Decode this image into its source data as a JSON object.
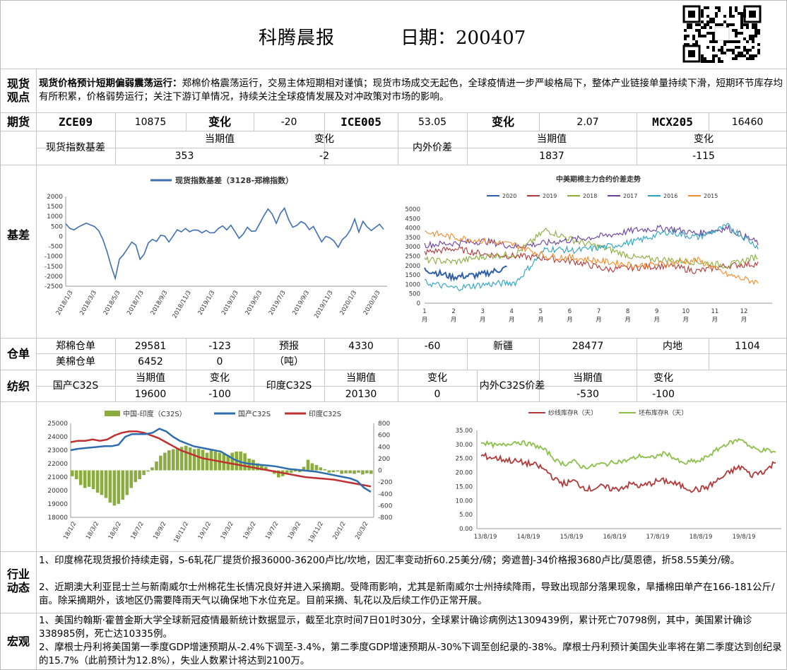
{
  "header": {
    "title": "科腾晨报",
    "date": "日期：200407"
  },
  "spot": {
    "label": "现货\n观点",
    "headline": "现货价格预计短期偏弱震荡运行：",
    "text": "郑棉价格震荡运行，交易主体短期相对谨慎；现货市场成交无起色，全球疫情进一步严峻格局下，整体产业链接单量持续下滑，短期环节库存均有所积累，价格弱势运行；关注下游订单情况，持续关注全球疫情发展及对冲政策对市场的影响。"
  },
  "futures": {
    "label": "期货",
    "zce_code": "ZCE09",
    "zce_price": "10875",
    "change_label": "变化",
    "zce_change": "-20",
    "ice_code": "ICE005",
    "ice_price": "53.05",
    "ice_change": "2.07",
    "mcx_code": "MCX205",
    "mcx_price": "16460"
  },
  "basis": {
    "label": "基差",
    "spot_index_label": "现货指数基差",
    "current_label": "当期值",
    "change_label": "变化",
    "spot_current": "353",
    "spot_change": "-2",
    "inout_label": "内外价差",
    "inout_current": "1837",
    "inout_change": "-115"
  },
  "chart_basis": {
    "type": "line",
    "legend": "现货指数基差（3128-郑棉指数）",
    "yticks": [
      "2000",
      "1500",
      "1000",
      "500",
      "0",
      "-500",
      "-1000",
      "-1500",
      "-2000",
      "-2500"
    ],
    "xticks": [
      "2018/1/3",
      "2018/3/3",
      "2018/5/3",
      "2018/7/3",
      "2018/9/3",
      "2018/11/3",
      "2019/1/3",
      "2019/3/3",
      "2019/5/3",
      "2019/7/3",
      "2019/9/3",
      "2019/11/3",
      "2020/1/3",
      "2020/3/3"
    ],
    "values": [
      650,
      450,
      300,
      500,
      620,
      700,
      620,
      480,
      300,
      -150,
      -700,
      -1500,
      -2150,
      -1200,
      -900,
      -600,
      -300,
      -400,
      -1200,
      -900,
      -300,
      -150,
      -200,
      100,
      0,
      -300,
      50,
      300,
      200,
      350,
      250,
      300,
      300,
      150,
      250,
      150,
      200,
      350,
      500,
      300,
      500,
      300,
      -50,
      100,
      400,
      200,
      300,
      700,
      1000,
      1400,
      1100,
      600,
      1200,
      1450,
      800,
      500,
      600,
      700,
      600,
      300,
      500,
      100,
      -300,
      50,
      -100,
      -200,
      -500,
      -200,
      0,
      400,
      900,
      200,
      800,
      500,
      300,
      400,
      600,
      350
    ]
  },
  "chart_spread": {
    "type": "line",
    "title": "中美期棉主力合约价差走势",
    "series_names": [
      "2020",
      "2019",
      "2018",
      "2017",
      "2016",
      "2015"
    ],
    "colors": [
      "#2e5fa8",
      "#b03a3a",
      "#8aad3e",
      "#6a3f9a",
      "#2aa3c0",
      "#f08c2c"
    ],
    "yticks": [
      "5000",
      "4500",
      "4000",
      "3500",
      "3000",
      "2500",
      "2000",
      "1500",
      "1000",
      "500",
      "0"
    ],
    "xticks": [
      "1\n月",
      "2\n月",
      "3\n月",
      "4\n月",
      "5\n月",
      "6\n月",
      "7\n月",
      "8\n月",
      "9\n月",
      "10\n月",
      "11\n月",
      "12\n月"
    ]
  },
  "warehouse": {
    "label": "仓单",
    "zz_label": "郑棉仓单",
    "zz_value": "29581",
    "zz_change": "-123",
    "forecast_label": "预报",
    "forecast_unit": "（吨）",
    "forecast_value": "4330",
    "forecast_change": "-60",
    "xj_label": "新疆",
    "xj_value": "28477",
    "nd_label": "内地",
    "nd_value": "1104",
    "us_label": "美棉仓单",
    "us_value": "6452",
    "us_change": "0"
  },
  "yarn": {
    "label": "纺织",
    "cn_label": "国产C32S",
    "current_label": "当期值",
    "change_label": "变化",
    "cn_current": "19600",
    "cn_change": "-100",
    "in_label": "印度C32S",
    "in_current": "20130",
    "in_change": "0",
    "spread_label": "内外C32S价差",
    "spread_current": "-530",
    "spread_change": "-100"
  },
  "chart_yarn": {
    "type": "line",
    "legend": [
      "中国-印度（C32S）",
      "国产C32S",
      "印度C32S"
    ],
    "yticks_left": [
      "25000",
      "24000",
      "23000",
      "22000",
      "21000",
      "20000",
      "19000",
      "18000"
    ],
    "yticks_right": [
      "800",
      "600",
      "400",
      "200",
      "0",
      "-200",
      "-400",
      "-600",
      "-800"
    ],
    "xticks": [
      "18/1/2",
      "18/3/2",
      "18/5/2",
      "18/7/2",
      "18/9/2",
      "18/11/2",
      "19/1/2",
      "19/3/2",
      "19/5/2",
      "19/7/2",
      "19/9/2",
      "19/11/2",
      "20/1/2",
      "20/3/2"
    ]
  },
  "chart_inventory": {
    "type": "line",
    "legend": [
      "纱线库存R（天）",
      "坯布库存R（天）"
    ],
    "yticks": [
      "35.00",
      "30.00",
      "25.00",
      "20.00",
      "15.00",
      "10.00",
      "5.00",
      "0.00"
    ],
    "xticks": [
      "13/8/19",
      "14/8/19",
      "15/8/19",
      "16/8/19",
      "17/8/19",
      "18/8/19",
      "19/8/19"
    ]
  },
  "industry": {
    "label": "行业\n动态",
    "p1": "1、印度棉花现货报价持续走弱，S-6轧花厂提货价报36000-36200卢比/坎地，因汇率变动折60.25美分/磅；旁遮普J-34价格报3680卢比/莫恩德，折58.55美分/磅。",
    "p2": "2、近期澳大利亚昆士兰与新南威尔士州棉花生长情况良好并进入采摘期。受降雨影响，尤其是新南威尔士州持续降雨，导致出现部分落果现象，旱播棉田单产在166-181公斤/亩。除采摘期外，该地区仍需要降雨天气以确保地下水位充足。目前采摘、轧花以及后续工作仍正常开展。"
  },
  "macro": {
    "label": "宏观",
    "p1": "1、美国约翰斯·霍普金斯大学全球新冠疫情最新统计数据显示，截至北京时间7日01时30分，全球累计确诊病例达1309439例，累计死亡70798例，其中，美国累计确诊338985例，死亡达10335例。",
    "p2": "2、摩根士丹利将美国第一季度GDP增速预期从-2.4%下调至-3.4%，第二季度GDP增速预期从-30%下调至创纪录的-38%。摩根士丹利预计美国失业率将在第二季度达到创纪录的15.7%（此前预计为12.8%），失业人数累计将达到2100万。"
  }
}
